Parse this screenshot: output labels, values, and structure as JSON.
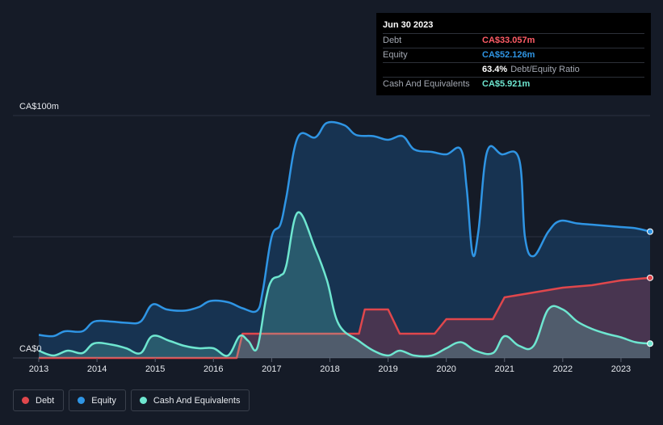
{
  "colors": {
    "background": "#151b27",
    "debt": "#e0474c",
    "equity": "#2f95e4",
    "cash": "#6ee6d0"
  },
  "tooltip": {
    "date": "Jun 30 2023",
    "rows": [
      {
        "label": "Debt",
        "value": "CA$33.057m",
        "color": "#ff5c66"
      },
      {
        "label": "Equity",
        "value": "CA$52.126m",
        "color": "#2f95e4"
      },
      {
        "label": "",
        "value": "63.4%",
        "sub": "Debt/Equity Ratio",
        "color": "#ffffff"
      },
      {
        "label": "Cash And Equivalents",
        "value": "CA$5.921m",
        "color": "#6ee6d0"
      }
    ]
  },
  "legend": [
    {
      "label": "Debt",
      "color": "#e0474c"
    },
    {
      "label": "Equity",
      "color": "#2f95e4"
    },
    {
      "label": "Cash And Equivalents",
      "color": "#6ee6d0"
    }
  ],
  "chart_data": {
    "type": "area",
    "y_tick_labels": [
      "CA$100m",
      "CA$0"
    ],
    "ylim": [
      0,
      100
    ],
    "xlim": [
      2013.0,
      2023.5
    ],
    "x_ticks": [
      2013,
      2014,
      2015,
      2016,
      2017,
      2018,
      2019,
      2020,
      2021,
      2022,
      2023
    ],
    "grid": true,
    "legend_position": "bottom-left",
    "series": [
      {
        "name": "Debt",
        "points": [
          [
            2013.0,
            0
          ],
          [
            2016.4,
            0
          ],
          [
            2016.5,
            10
          ],
          [
            2018.5,
            10
          ],
          [
            2018.6,
            20
          ],
          [
            2019.0,
            20
          ],
          [
            2019.2,
            10
          ],
          [
            2019.8,
            10
          ],
          [
            2020.0,
            16
          ],
          [
            2020.8,
            16
          ],
          [
            2021.0,
            25
          ],
          [
            2021.5,
            27
          ],
          [
            2022.0,
            29
          ],
          [
            2022.5,
            30
          ],
          [
            2023.0,
            32
          ],
          [
            2023.5,
            33.057
          ]
        ]
      },
      {
        "name": "Equity",
        "points": [
          [
            2013.0,
            9.5
          ],
          [
            2013.25,
            9.0
          ],
          [
            2013.45,
            11
          ],
          [
            2013.75,
            11
          ],
          [
            2013.95,
            15
          ],
          [
            2014.25,
            15
          ],
          [
            2014.5,
            14.5
          ],
          [
            2014.75,
            15
          ],
          [
            2014.95,
            22
          ],
          [
            2015.2,
            20
          ],
          [
            2015.5,
            19.5
          ],
          [
            2015.75,
            21
          ],
          [
            2015.95,
            23.5
          ],
          [
            2016.25,
            23
          ],
          [
            2016.5,
            20.5
          ],
          [
            2016.75,
            19.5
          ],
          [
            2016.85,
            28
          ],
          [
            2017.0,
            50
          ],
          [
            2017.15,
            55
          ],
          [
            2017.25,
            66
          ],
          [
            2017.45,
            91
          ],
          [
            2017.75,
            91
          ],
          [
            2017.95,
            97
          ],
          [
            2018.25,
            96
          ],
          [
            2018.45,
            92
          ],
          [
            2018.75,
            91.5
          ],
          [
            2019.0,
            90
          ],
          [
            2019.25,
            91.5
          ],
          [
            2019.45,
            86
          ],
          [
            2019.75,
            85
          ],
          [
            2020.0,
            84
          ],
          [
            2020.25,
            86
          ],
          [
            2020.35,
            70
          ],
          [
            2020.45,
            43
          ],
          [
            2020.55,
            52
          ],
          [
            2020.7,
            85
          ],
          [
            2020.95,
            84
          ],
          [
            2021.25,
            82
          ],
          [
            2021.35,
            50
          ],
          [
            2021.5,
            42
          ],
          [
            2021.75,
            52
          ],
          [
            2021.95,
            56.5
          ],
          [
            2022.25,
            55.5
          ],
          [
            2022.5,
            55
          ],
          [
            2022.75,
            54.5
          ],
          [
            2023.0,
            54
          ],
          [
            2023.25,
            53.5
          ],
          [
            2023.5,
            52.126
          ]
        ]
      },
      {
        "name": "Cash And Equivalents",
        "points": [
          [
            2013.0,
            3
          ],
          [
            2013.25,
            1
          ],
          [
            2013.5,
            3
          ],
          [
            2013.75,
            2
          ],
          [
            2013.95,
            6
          ],
          [
            2014.25,
            5.5
          ],
          [
            2014.5,
            4
          ],
          [
            2014.75,
            2
          ],
          [
            2014.95,
            9
          ],
          [
            2015.25,
            7
          ],
          [
            2015.5,
            5
          ],
          [
            2015.75,
            4
          ],
          [
            2016.0,
            4
          ],
          [
            2016.25,
            1
          ],
          [
            2016.45,
            9
          ],
          [
            2016.6,
            7
          ],
          [
            2016.75,
            4
          ],
          [
            2016.9,
            24
          ],
          [
            2017.0,
            32
          ],
          [
            2017.15,
            34
          ],
          [
            2017.25,
            38
          ],
          [
            2017.45,
            60
          ],
          [
            2017.75,
            45
          ],
          [
            2017.95,
            32
          ],
          [
            2018.15,
            14
          ],
          [
            2018.5,
            7
          ],
          [
            2018.75,
            3
          ],
          [
            2019.0,
            1
          ],
          [
            2019.2,
            3
          ],
          [
            2019.45,
            1
          ],
          [
            2019.75,
            1
          ],
          [
            2020.0,
            4
          ],
          [
            2020.25,
            6.5
          ],
          [
            2020.5,
            3
          ],
          [
            2020.8,
            2
          ],
          [
            2021.0,
            9
          ],
          [
            2021.25,
            5
          ],
          [
            2021.5,
            5
          ],
          [
            2021.75,
            20
          ],
          [
            2022.0,
            20
          ],
          [
            2022.25,
            15
          ],
          [
            2022.5,
            12
          ],
          [
            2022.75,
            10
          ],
          [
            2023.0,
            8.5
          ],
          [
            2023.25,
            6.5
          ],
          [
            2023.5,
            5.921
          ]
        ]
      }
    ]
  }
}
